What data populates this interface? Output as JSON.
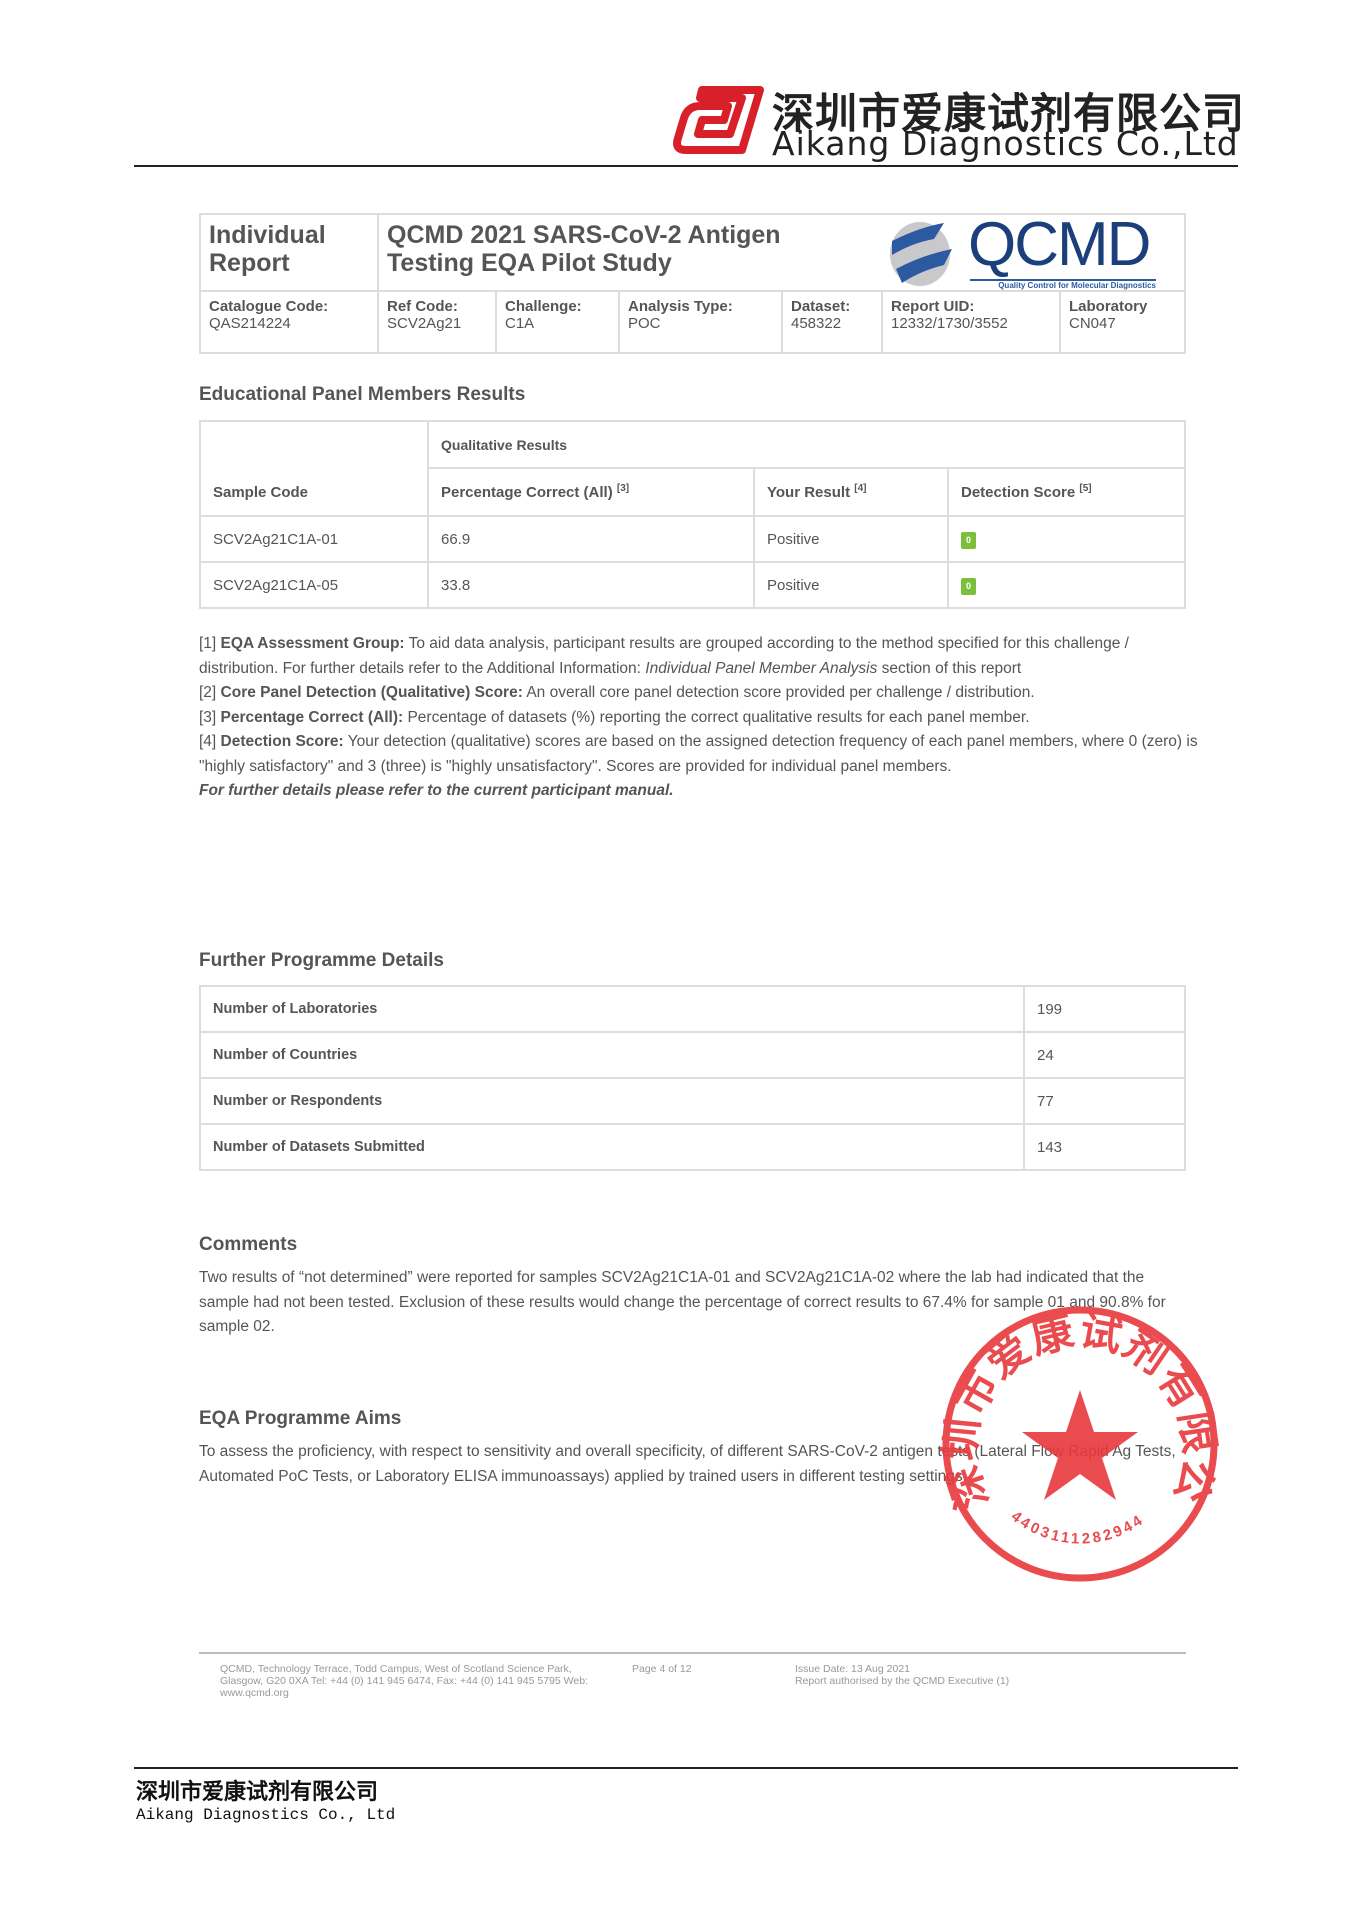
{
  "letterhead": {
    "company_cn": "深圳市爱康试剂有限公司",
    "company_en": "Aikang Diagnostics Co.,Ltd",
    "logo_icon": "aikang-logo-icon",
    "brand_color": "#d8202a"
  },
  "report_header": {
    "type": "Individual Report",
    "title": "QCMD 2021 SARS-CoV-2 Antigen Testing EQA Pilot Study",
    "logo_text": "QCMD",
    "logo_tagline": "Quality Control for Molecular Diagnostics",
    "fields": [
      {
        "label": "Catalogue Code:",
        "value": "QAS214224"
      },
      {
        "label": "Ref Code:",
        "value": "SCV2Ag21"
      },
      {
        "label": "Challenge:",
        "value": "C1A"
      },
      {
        "label": "Analysis Type:",
        "value": "POC"
      },
      {
        "label": "Dataset:",
        "value": "458322"
      },
      {
        "label": "Report UID:",
        "value": "12332/1730/3552"
      },
      {
        "label": "Laboratory",
        "value": "CN047"
      }
    ]
  },
  "educational": {
    "heading": "Educational Panel Members Results",
    "group_header": "Qualitative Results",
    "columns": [
      {
        "label": "Sample Code",
        "sup": ""
      },
      {
        "label": "Percentage Correct (All)",
        "sup": "[3]"
      },
      {
        "label": "Your Result",
        "sup": "[4]"
      },
      {
        "label": "Detection Score",
        "sup": "[5]"
      }
    ],
    "rows": [
      {
        "sample": "SCV2Ag21C1A-01",
        "pct": "66.9",
        "result": "Positive",
        "score": "0"
      },
      {
        "sample": "SCV2Ag21C1A-05",
        "pct": "33.8",
        "result": "Positive",
        "score": "0"
      }
    ],
    "score_color": "#7cbf3c"
  },
  "footnotes": [
    {
      "num": "[1]",
      "term": "EQA Assessment Group:",
      "text": " To aid data analysis, participant results are grouped according to the method specified for this challenge / distribution. For further details refer to the Additional Information: ",
      "italic": "Individual Panel Member Analysis",
      "tail": " section of this report"
    },
    {
      "num": "[2]",
      "term": "Core Panel Detection (Qualitative) Score:",
      "text": " An overall core panel detection score provided per challenge / distribution."
    },
    {
      "num": "[3]",
      "term": "Percentage Correct (All):",
      "text": " Percentage of datasets (%) reporting the correct qualitative results for each panel member."
    },
    {
      "num": "[4]",
      "term": "Detection Score:",
      "text": " Your detection (qualitative) scores are based on the assigned detection frequency of each panel members, where 0 (zero) is \"highly satisfactory\" and 3 (three) is \"highly unsatisfactory\". Scores are provided for individual panel members."
    }
  ],
  "manual_note": "For further details please refer to the current participant manual.",
  "programme": {
    "heading": "Further Programme Details",
    "rows": [
      {
        "label": "Number of Laboratories",
        "value": "199"
      },
      {
        "label": "Number of Countries",
        "value": "24"
      },
      {
        "label": "Number or Respondents",
        "value": "77"
      },
      {
        "label": "Number of Datasets Submitted",
        "value": "143"
      }
    ]
  },
  "comments": {
    "heading": "Comments",
    "text": "Two results of “not determined” were reported for samples SCV2Ag21C1A-01 and SCV2Ag21C1A-02 where the lab had indicated that the sample had not been tested. Exclusion of these results would change the percentage of correct results to 67.4% for sample 01 and 90.8% for sample 02."
  },
  "aims": {
    "heading": "EQA Programme Aims",
    "text": "To assess the proficiency, with respect to sensitivity and overall specificity, of different SARS-CoV-2 antigen tests (Lateral Flow Rapid Ag Tests, Automated PoC Tests, or Laboratory ELISA immunoassays) applied by trained users in different testing settings."
  },
  "stamp": {
    "text_cn": "深圳市爱康试剂有限公司",
    "number": "4403111282944",
    "color": "#e8383d"
  },
  "report_footer": {
    "address": "QCMD, Technology Terrace, Todd Campus, West of Scotland Science Park, Glasgow, G20 0XA Tel: +44 (0) 141 945 6474, Fax: +44 (0) 141 945 5795 Web: www.qcmd.org",
    "page": "Page 4 of 12",
    "issue_date": "Issue Date: 13 Aug 2021",
    "authorised": "Report authorised by the QCMD Executive (1)"
  },
  "page_footer": {
    "company_cn": "深圳市爱康试剂有限公司",
    "company_en": "Aikang Diagnostics Co., Ltd"
  }
}
